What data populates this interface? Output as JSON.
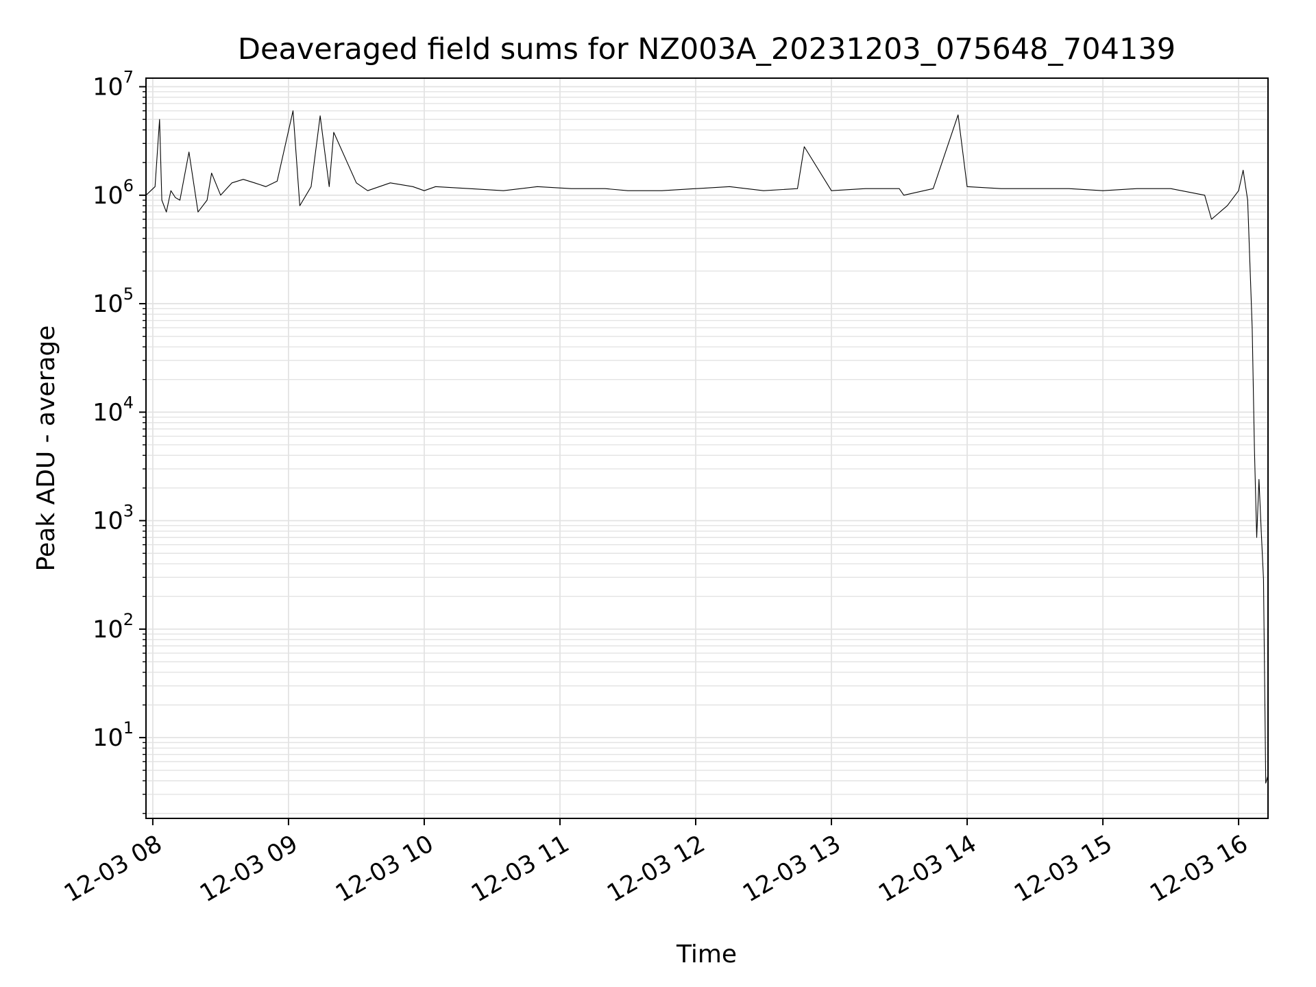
{
  "chart_data": {
    "type": "line",
    "title": "Deaveraged field sums for NZ003A_20231203_075648_704139",
    "xlabel": "Time",
    "ylabel": "Peak ADU - average",
    "y_scale": "log",
    "ylim": [
      1.8,
      12000000
    ],
    "xlim": [
      "2023-12-03 07:57",
      "2023-12-03 16:13"
    ],
    "x_ticks": [
      {
        "time": "2023-12-03 08:00",
        "label": "12-03 08"
      },
      {
        "time": "2023-12-03 09:00",
        "label": "12-03 09"
      },
      {
        "time": "2023-12-03 10:00",
        "label": "12-03 10"
      },
      {
        "time": "2023-12-03 11:00",
        "label": "12-03 11"
      },
      {
        "time": "2023-12-03 12:00",
        "label": "12-03 12"
      },
      {
        "time": "2023-12-03 13:00",
        "label": "12-03 13"
      },
      {
        "time": "2023-12-03 14:00",
        "label": "12-03 14"
      },
      {
        "time": "2023-12-03 15:00",
        "label": "12-03 15"
      },
      {
        "time": "2023-12-03 16:00",
        "label": "12-03 16"
      }
    ],
    "y_ticks": [
      {
        "value": 10,
        "base": "10",
        "exp": "1"
      },
      {
        "value": 100,
        "base": "10",
        "exp": "2"
      },
      {
        "value": 1000,
        "base": "10",
        "exp": "3"
      },
      {
        "value": 10000,
        "base": "10",
        "exp": "4"
      },
      {
        "value": 100000,
        "base": "10",
        "exp": "5"
      },
      {
        "value": 1000000,
        "base": "10",
        "exp": "6"
      },
      {
        "value": 10000000,
        "base": "10",
        "exp": "7"
      }
    ],
    "grid": "major and minor",
    "line_color": "#000000",
    "grid_color": "#e3e3e3",
    "series": [
      {
        "x": [
          "2023-12-03 07:57",
          "2023-12-03 08:01",
          "2023-12-03 08:03",
          "2023-12-03 08:04",
          "2023-12-03 08:06",
          "2023-12-03 08:08",
          "2023-12-03 08:10",
          "2023-12-03 08:12",
          "2023-12-03 08:16",
          "2023-12-03 08:20",
          "2023-12-03 08:24",
          "2023-12-03 08:26",
          "2023-12-03 08:30",
          "2023-12-03 08:35",
          "2023-12-03 08:40",
          "2023-12-03 08:45",
          "2023-12-03 08:50",
          "2023-12-03 08:55",
          "2023-12-03 09:02",
          "2023-12-03 09:05",
          "2023-12-03 09:10",
          "2023-12-03 09:14",
          "2023-12-03 09:18",
          "2023-12-03 09:20",
          "2023-12-03 09:30",
          "2023-12-03 09:35",
          "2023-12-03 09:45",
          "2023-12-03 09:55",
          "2023-12-03 10:00",
          "2023-12-03 10:05",
          "2023-12-03 10:20",
          "2023-12-03 10:35",
          "2023-12-03 10:50",
          "2023-12-03 11:05",
          "2023-12-03 11:20",
          "2023-12-03 11:30",
          "2023-12-03 11:45",
          "2023-12-03 12:00",
          "2023-12-03 12:15",
          "2023-12-03 12:30",
          "2023-12-03 12:45",
          "2023-12-03 12:48",
          "2023-12-03 13:00",
          "2023-12-03 13:15",
          "2023-12-03 13:30",
          "2023-12-03 13:32",
          "2023-12-03 13:45",
          "2023-12-03 13:56",
          "2023-12-03 14:00",
          "2023-12-03 14:15",
          "2023-12-03 14:30",
          "2023-12-03 14:45",
          "2023-12-03 15:00",
          "2023-12-03 15:15",
          "2023-12-03 15:30",
          "2023-12-03 15:45",
          "2023-12-03 15:48",
          "2023-12-03 15:55",
          "2023-12-03 16:00",
          "2023-12-03 16:02",
          "2023-12-03 16:04",
          "2023-12-03 16:06",
          "2023-12-03 16:07",
          "2023-12-03 16:08",
          "2023-12-03 16:09",
          "2023-12-03 16:10",
          "2023-12-03 16:11",
          "2023-12-03 16:12",
          "2023-12-03 16:13"
        ],
        "y": [
          1000000,
          1200000,
          5000000,
          900000,
          700000,
          1100000,
          950000,
          900000,
          2500000,
          700000,
          900000,
          1600000,
          1000000,
          1300000,
          1400000,
          1300000,
          1200000,
          1350000,
          6000000,
          800000,
          1200000,
          5400000,
          1200000,
          3800000,
          1300000,
          1100000,
          1300000,
          1200000,
          1100000,
          1200000,
          1150000,
          1100000,
          1200000,
          1150000,
          1150000,
          1100000,
          1100000,
          1150000,
          1200000,
          1100000,
          1150000,
          2800000,
          1100000,
          1150000,
          1150000,
          1000000,
          1150000,
          5500000,
          1200000,
          1150000,
          1150000,
          1150000,
          1100000,
          1150000,
          1150000,
          1000000,
          600000,
          800000,
          1100000,
          1700000,
          900000,
          60000,
          4500,
          700,
          2400,
          800,
          290,
          3.8,
          4.5
        ]
      }
    ]
  }
}
